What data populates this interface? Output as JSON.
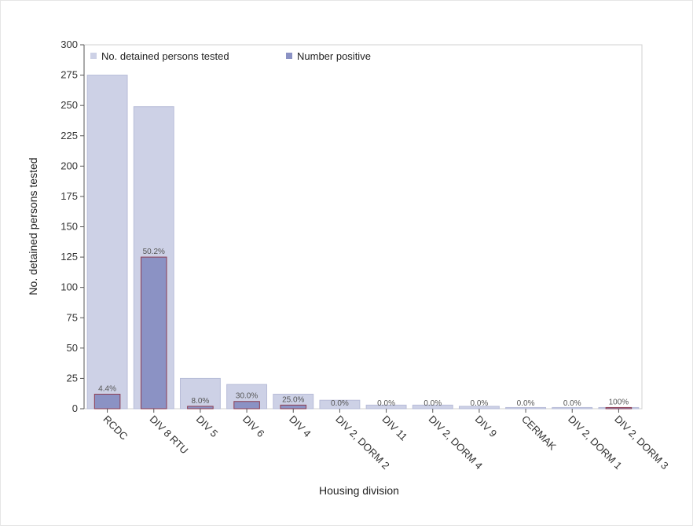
{
  "chart_data": {
    "type": "bar",
    "xlabel": "Housing division",
    "ylabel": "No. detained persons tested",
    "ylim": [
      0,
      300
    ],
    "yticks": [
      0,
      25,
      50,
      75,
      100,
      125,
      150,
      175,
      200,
      225,
      250,
      275,
      300
    ],
    "categories": [
      "RCDC",
      "DIV 8 RTU",
      "DIV 5",
      "DIV 6",
      "DIV 4",
      "DIV 2, DORM 2",
      "DIV 11",
      "DIV 2, DORM 4",
      "DIV 9",
      "CERMAK",
      "DIV 2, DORM 1",
      "DIV 2, DORM 3"
    ],
    "series": [
      {
        "name": "No. detained persons tested",
        "values": [
          275,
          249,
          25,
          20,
          12,
          7,
          3,
          3,
          2,
          1,
          1,
          1
        ],
        "color": "#cdd1e6"
      },
      {
        "name": "Number positive",
        "values": [
          12,
          125,
          2,
          6,
          3,
          0,
          0,
          0,
          0,
          0,
          0,
          1
        ],
        "color": "#8b92c4"
      }
    ],
    "data_labels": [
      "4.4%",
      "50.2%",
      "8.0%",
      "30.0%",
      "25.0%",
      "0.0%",
      "0.0%",
      "0.0%",
      "0.0%",
      "0.0%",
      "0.0%",
      "100%"
    ],
    "legend_position": "top-left",
    "grid": false
  }
}
